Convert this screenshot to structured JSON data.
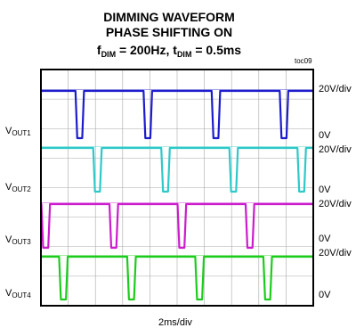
{
  "title": {
    "line1": "DIMMING WAVEFORM",
    "line2": "PHASE SHIFTING ON",
    "line3": {
      "f_sym": "f",
      "f_sub": "DIM",
      "f_val": " = 200Hz, t",
      "t_sub": "DIM",
      "t_val": " = 0.5ms"
    }
  },
  "tag": "toc09",
  "x_scale_label": "2ms/div",
  "chart_data": {
    "type": "line",
    "x_unit": "ms",
    "x_range": [
      0,
      20
    ],
    "divisions": {
      "x": 10,
      "y": 8
    },
    "time_per_div_ms": 2,
    "pulse_period_ms": 5,
    "pulse_low_width_ms": 0.5,
    "grid": true,
    "channels": [
      {
        "label_main": "V",
        "label_sub": "OUT1",
        "scale": "20V/div",
        "zero_label": "0V",
        "color": "#1c1ccc",
        "low_starts_ms": [
          2.6,
          7.6,
          12.6,
          17.6
        ]
      },
      {
        "label_main": "V",
        "label_sub": "OUT2",
        "scale": "20V/div",
        "zero_label": "0V",
        "color": "#2ec9c9",
        "low_starts_ms": [
          3.9,
          8.9,
          13.9,
          18.9
        ]
      },
      {
        "label_main": "V",
        "label_sub": "OUT3",
        "scale": "20V/div",
        "zero_label": "0V",
        "color": "#cc1ccc",
        "low_starts_ms": [
          0.1,
          5.1,
          10.1,
          15.1
        ]
      },
      {
        "label_main": "V",
        "label_sub": "OUT4",
        "scale": "20V/div",
        "zero_label": "0V",
        "color": "#1ccc1c",
        "low_starts_ms": [
          1.4,
          6.4,
          11.4,
          16.4
        ]
      }
    ]
  }
}
